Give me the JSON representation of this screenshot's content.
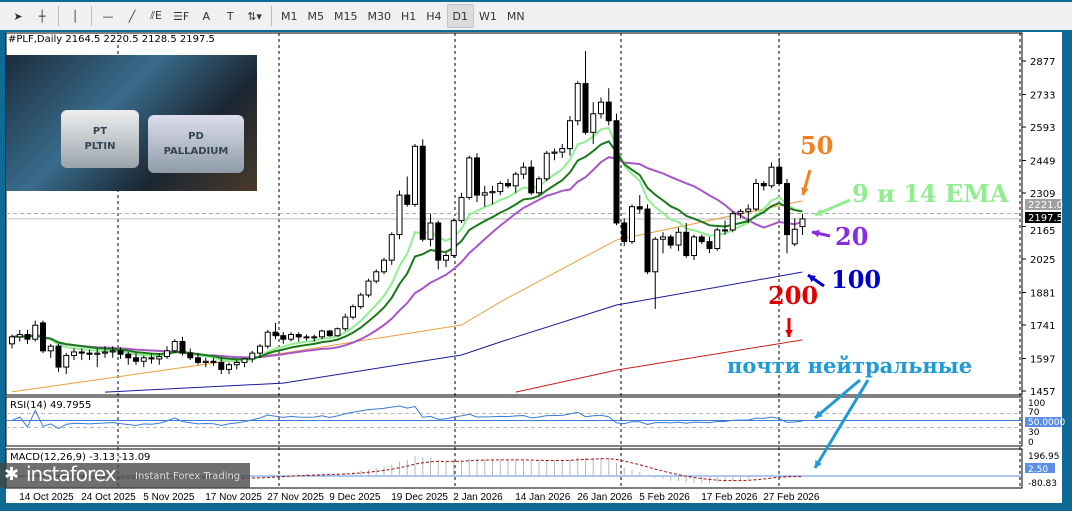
{
  "toolbar": {
    "tools": [
      {
        "icon": "cursor-icon",
        "label": "➤"
      },
      {
        "icon": "crosshair-icon",
        "label": "┼"
      },
      {
        "icon": "vertical-line-icon",
        "label": "│"
      },
      {
        "icon": "horizontal-line-icon",
        "label": "—"
      },
      {
        "icon": "trendline-icon",
        "label": "╱"
      },
      {
        "icon": "equidistant-channel-icon",
        "label": "⫽E"
      },
      {
        "icon": "fibonacci-icon",
        "label": "☰F"
      },
      {
        "icon": "text-icon",
        "label": "A"
      },
      {
        "icon": "text-label-icon",
        "label": "T"
      },
      {
        "icon": "arrows-icon",
        "label": "⇅▾"
      }
    ],
    "timeframes": [
      "M1",
      "M5",
      "M15",
      "M30",
      "H1",
      "H4",
      "D1",
      "W1",
      "MN"
    ],
    "active_timeframe": "D1"
  },
  "header": {
    "symbol_line": "#PLF,Daily  2164.5 2220.5 2128.5 2197.5"
  },
  "picture": {
    "lettering": [
      "PT",
      "PLTIN",
      "PD",
      "PALLADIUM"
    ]
  },
  "annotations": {
    "ma50": "50",
    "ema": "9 и 14 EMA",
    "ma20": "20",
    "ma100": "100",
    "ma200": "200",
    "neutral": "почти нейтральные"
  },
  "watermark": {
    "brand": "instaforex",
    "tagline": "Instant Forex Trading"
  },
  "colors": {
    "ema9": "#90ee90",
    "ema14": "#1a7a1a",
    "sma20": "#a855c8",
    "ma50": "#e8a040",
    "ma100": "#1a1a9a",
    "ma200": "#c81e1e",
    "rsi": "#3a7bd5",
    "macd_hist": "#b8b8b8",
    "macd_signal": "#a01010",
    "ann50": "#f08020",
    "annEma": "#90ee90",
    "ann20": "#8a2be2",
    "ann100": "#0000cc",
    "ann200": "#e00000",
    "annNeutral": "#1e9ad6"
  },
  "chart_data": [
    {
      "type": "candlestick",
      "symbol": "#PLF",
      "timeframe": "Daily",
      "last": {
        "open": 2164.5,
        "high": 2220.5,
        "low": 2128.5,
        "close": 2197.5
      },
      "ylim": [
        1400,
        2960
      ],
      "y_ticks": [
        2877.0,
        2733.0,
        2593.0,
        2449.0,
        2309.0,
        2165.0,
        2025.0,
        1881.0,
        1741.0,
        1597.0,
        1457.0
      ],
      "price_labels": {
        "ask": "2221.0",
        "bid": "2197.5",
        "ask_value": 2221.0,
        "bid_value": 2197.5
      },
      "x_ticks": [
        "14 Oct 2025",
        "24 Oct 2025",
        "5 Nov 2025",
        "17 Nov 2025",
        "27 Nov 2025",
        "9 Dec 2025",
        "19 Dec 2025",
        "2 Jan 2026",
        "14 Jan 2026",
        "26 Jan 2026",
        "5 Feb 2026",
        "17 Feb 2026",
        "27 Feb 2026"
      ],
      "x_tick_bars": [
        3,
        11,
        19,
        27,
        35,
        43,
        51,
        59,
        67,
        75,
        83,
        91,
        99
      ],
      "ohlc": [
        [
          1660,
          1700,
          1640,
          1690
        ],
        [
          1690,
          1720,
          1670,
          1700
        ],
        [
          1700,
          1720,
          1660,
          1680
        ],
        [
          1680,
          1760,
          1670,
          1740
        ],
        [
          1750,
          1760,
          1620,
          1630
        ],
        [
          1630,
          1660,
          1600,
          1650
        ],
        [
          1650,
          1660,
          1540,
          1560
        ],
        [
          1560,
          1620,
          1530,
          1610
        ],
        [
          1610,
          1640,
          1590,
          1625
        ],
        [
          1625,
          1640,
          1590,
          1620
        ],
        [
          1620,
          1635,
          1590,
          1615
        ],
        [
          1615,
          1640,
          1560,
          1620
        ],
        [
          1620,
          1650,
          1600,
          1625
        ],
        [
          1625,
          1650,
          1600,
          1630
        ],
        [
          1630,
          1645,
          1595,
          1615
        ],
        [
          1615,
          1625,
          1570,
          1600
        ],
        [
          1600,
          1620,
          1570,
          1585
        ],
        [
          1585,
          1610,
          1560,
          1600
        ],
        [
          1600,
          1620,
          1575,
          1595
        ],
        [
          1595,
          1620,
          1570,
          1605
        ],
        [
          1605,
          1650,
          1595,
          1630
        ],
        [
          1630,
          1680,
          1620,
          1670
        ],
        [
          1670,
          1690,
          1610,
          1620
        ],
        [
          1620,
          1640,
          1590,
          1600
        ],
        [
          1600,
          1620,
          1570,
          1580
        ],
        [
          1580,
          1600,
          1560,
          1585
        ],
        [
          1585,
          1600,
          1565,
          1580
        ],
        [
          1580,
          1600,
          1530,
          1550
        ],
        [
          1550,
          1580,
          1530,
          1570
        ],
        [
          1570,
          1590,
          1550,
          1580
        ],
        [
          1580,
          1600,
          1560,
          1595
        ],
        [
          1595,
          1630,
          1580,
          1620
        ],
        [
          1620,
          1660,
          1600,
          1650
        ],
        [
          1650,
          1720,
          1640,
          1710
        ],
        [
          1710,
          1750,
          1680,
          1695
        ],
        [
          1695,
          1710,
          1660,
          1680
        ],
        [
          1680,
          1710,
          1670,
          1700
        ],
        [
          1700,
          1710,
          1670,
          1690
        ],
        [
          1690,
          1700,
          1675,
          1688
        ],
        [
          1688,
          1700,
          1670,
          1690
        ],
        [
          1690,
          1720,
          1680,
          1715
        ],
        [
          1715,
          1720,
          1690,
          1695
        ],
        [
          1695,
          1730,
          1690,
          1725
        ],
        [
          1725,
          1790,
          1715,
          1775
        ],
        [
          1775,
          1830,
          1765,
          1820
        ],
        [
          1820,
          1880,
          1810,
          1870
        ],
        [
          1870,
          1940,
          1860,
          1930
        ],
        [
          1930,
          1980,
          1920,
          1970
        ],
        [
          1970,
          2030,
          1960,
          2020
        ],
        [
          2020,
          2140,
          2000,
          2130
        ],
        [
          2130,
          2320,
          2110,
          2300
        ],
        [
          2300,
          2380,
          2250,
          2260
        ],
        [
          2260,
          2520,
          2250,
          2510
        ],
        [
          2510,
          2540,
          2100,
          2110
        ],
        [
          2110,
          2220,
          2080,
          2180
        ],
        [
          2180,
          2190,
          1980,
          2020
        ],
        [
          2020,
          2050,
          1990,
          2040
        ],
        [
          2040,
          2200,
          2030,
          2190
        ],
        [
          2190,
          2310,
          2180,
          2290
        ],
        [
          2290,
          2470,
          2280,
          2460
        ],
        [
          2460,
          2480,
          2270,
          2300
        ],
        [
          2300,
          2340,
          2250,
          2310
        ],
        [
          2310,
          2340,
          2260,
          2315
        ],
        [
          2315,
          2360,
          2300,
          2350
        ],
        [
          2350,
          2370,
          2330,
          2340
        ],
        [
          2340,
          2400,
          2310,
          2390
        ],
        [
          2390,
          2440,
          2370,
          2420
        ],
        [
          2420,
          2450,
          2300,
          2310
        ],
        [
          2310,
          2380,
          2300,
          2370
        ],
        [
          2370,
          2490,
          2360,
          2480
        ],
        [
          2480,
          2500,
          2450,
          2485
        ],
        [
          2485,
          2520,
          2460,
          2500
        ],
        [
          2500,
          2640,
          2470,
          2620
        ],
        [
          2620,
          2790,
          2600,
          2780
        ],
        [
          2780,
          2920,
          2560,
          2570
        ],
        [
          2570,
          2700,
          2520,
          2650
        ],
        [
          2650,
          2720,
          2630,
          2700
        ],
        [
          2700,
          2760,
          2600,
          2620
        ],
        [
          2620,
          2650,
          2170,
          2180
        ],
        [
          2180,
          2200,
          2080,
          2100
        ],
        [
          2100,
          2260,
          2090,
          2250
        ],
        [
          2250,
          2300,
          2220,
          2240
        ],
        [
          2240,
          2260,
          1960,
          1970
        ],
        [
          1970,
          2120,
          1810,
          2110
        ],
        [
          2110,
          2140,
          2050,
          2120
        ],
        [
          2120,
          2130,
          2070,
          2085
        ],
        [
          2085,
          2160,
          2060,
          2140
        ],
        [
          2140,
          2180,
          2030,
          2040
        ],
        [
          2040,
          2130,
          2020,
          2120
        ],
        [
          2120,
          2130,
          2090,
          2100
        ],
        [
          2100,
          2120,
          2050,
          2070
        ],
        [
          2070,
          2160,
          2060,
          2150
        ],
        [
          2150,
          2190,
          2130,
          2150
        ],
        [
          2150,
          2230,
          2140,
          2220
        ],
        [
          2220,
          2240,
          2200,
          2230
        ],
        [
          2230,
          2260,
          2180,
          2240
        ],
        [
          2240,
          2370,
          2230,
          2350
        ],
        [
          2350,
          2360,
          2320,
          2340
        ],
        [
          2340,
          2440,
          2330,
          2420
        ],
        [
          2420,
          2460,
          2340,
          2350
        ],
        [
          2350,
          2370,
          2050,
          2130
        ],
        [
          2090,
          2200,
          2080,
          2153
        ],
        [
          2164.5,
          2220.5,
          2128.5,
          2197.5
        ]
      ],
      "moving_averages": [
        {
          "name": "9 EMA",
          "period": 9,
          "kind": "ema"
        },
        {
          "name": "14 EMA",
          "period": 14,
          "kind": "ema"
        },
        {
          "name": "20",
          "period": 20,
          "kind": "sma"
        },
        {
          "name": "50",
          "period": 50,
          "points": [
            [
              0,
              1453
            ],
            [
              35,
              1620
            ],
            [
              58,
              1741
            ],
            [
              63,
              1840
            ],
            [
              78,
              2107
            ],
            [
              102,
              2275
            ]
          ]
        },
        {
          "name": "100",
          "period": 100,
          "points": [
            [
              12,
              1452
            ],
            [
              35,
              1491
            ],
            [
              58,
              1612
            ],
            [
              63,
              1668
            ],
            [
              78,
              1827
            ],
            [
              102,
              1969
            ]
          ]
        },
        {
          "name": "200",
          "period": 200,
          "points": [
            [
              65,
              1452
            ],
            [
              78,
              1547
            ],
            [
              102,
              1677
            ]
          ]
        }
      ]
    },
    {
      "type": "line",
      "title": "RSI(14) 49.7955",
      "ylim": [
        0,
        100
      ],
      "y_ticks": [
        "100",
        "70",
        "50.0000",
        "30",
        "0"
      ],
      "levels": [
        70,
        50,
        30
      ]
    },
    {
      "type": "bar",
      "title": "MACD(12,26,9) -3.13 -13.09",
      "y_ticks": [
        "196.95",
        "2.50",
        "-80.83"
      ],
      "ylim": [
        -80.83,
        196.95
      ]
    }
  ]
}
